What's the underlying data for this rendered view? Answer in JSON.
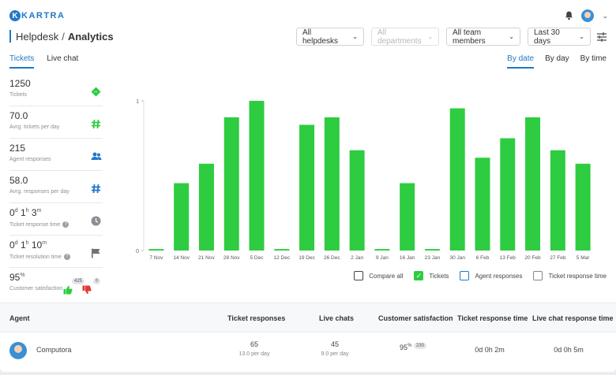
{
  "brand": {
    "logo_letter": "K",
    "name": "KARTRA"
  },
  "header": {
    "section": "Helpdesk",
    "separator": "/",
    "page": "Analytics"
  },
  "filters": [
    {
      "label": "All helpdesks",
      "disabled": false
    },
    {
      "label": "All departments",
      "disabled": true
    },
    {
      "label": "All team members",
      "disabled": false
    },
    {
      "label": "Last 30 days",
      "disabled": false
    }
  ],
  "tabs": {
    "left": [
      "Tickets",
      "Live chat"
    ],
    "active_left": "Tickets",
    "right": [
      "By date",
      "By day",
      "By time"
    ],
    "active_right": "By date"
  },
  "stats": [
    {
      "value": "1250",
      "label": "Tickets",
      "icon": "ticket-icon"
    },
    {
      "value": "70.0",
      "label": "Avrg. tickets per day",
      "icon": "hash-icon"
    },
    {
      "value": "215",
      "label": "Agent responses",
      "icon": "people-icon"
    },
    {
      "value": "58.0",
      "label": "Avrg. responses per day",
      "icon": "hash-icon"
    },
    {
      "value_parts": [
        "0",
        "d",
        "1",
        "h",
        "3",
        "m"
      ],
      "label": "Ticket response time",
      "icon": "clock-icon"
    },
    {
      "value_parts": [
        "0",
        "d",
        "1",
        "h",
        "10",
        "m"
      ],
      "label": "Ticket resolution time",
      "icon": "flag-icon"
    },
    {
      "value": "95",
      "unit": "%",
      "label": "Customer satisfaction",
      "thumbs_up": "425",
      "thumbs_down": "0"
    }
  ],
  "chart_data": {
    "type": "bar",
    "categories": [
      "7 Nov",
      "14 Nov",
      "21 Nov",
      "28 Nov",
      "5 Dec",
      "12 Dec",
      "19 Dec",
      "26 Dec",
      "2 Jan",
      "9 Jan",
      "16 Jan",
      "23 Jan",
      "30 Jan",
      "6 Feb",
      "13 Feb",
      "20 Feb",
      "27 Feb",
      "5 Mar"
    ],
    "values": [
      0.01,
      0.45,
      0.58,
      0.89,
      1.0,
      0.01,
      0.84,
      0.89,
      0.67,
      0.01,
      0.45,
      0.01,
      0.95,
      0.62,
      0.75,
      0.89,
      0.67,
      0.58
    ],
    "ylim": [
      0,
      1
    ],
    "yticks": [
      "0",
      "1"
    ],
    "color": "#2ecc40",
    "title": "",
    "xlabel": "",
    "ylabel": "",
    "grid": false
  },
  "legend": [
    {
      "label": "Compare all",
      "checked": false,
      "style": "dark"
    },
    {
      "label": "Tickets",
      "checked": true,
      "style": "green"
    },
    {
      "label": "Agent responses",
      "checked": false,
      "style": "blue"
    },
    {
      "label": "Ticket response time",
      "checked": false,
      "style": "gray"
    }
  ],
  "table": {
    "headers": [
      "Agent",
      "Ticket responses",
      "Live chats",
      "Customer satisfaction",
      "Ticket response time",
      "Live chat response time"
    ],
    "rows": [
      {
        "agent": "Computora",
        "ticket_responses": "65",
        "ticket_responses_sub": "13.0 per day",
        "live_chats": "45",
        "live_chats_sub": "9.0 per day",
        "satisfaction": "95",
        "satisfaction_unit": "%",
        "satisfaction_count": "230",
        "ticket_response_time": "0d 0h 2m",
        "chat_response_time": "0d 0h 5m"
      }
    ]
  }
}
